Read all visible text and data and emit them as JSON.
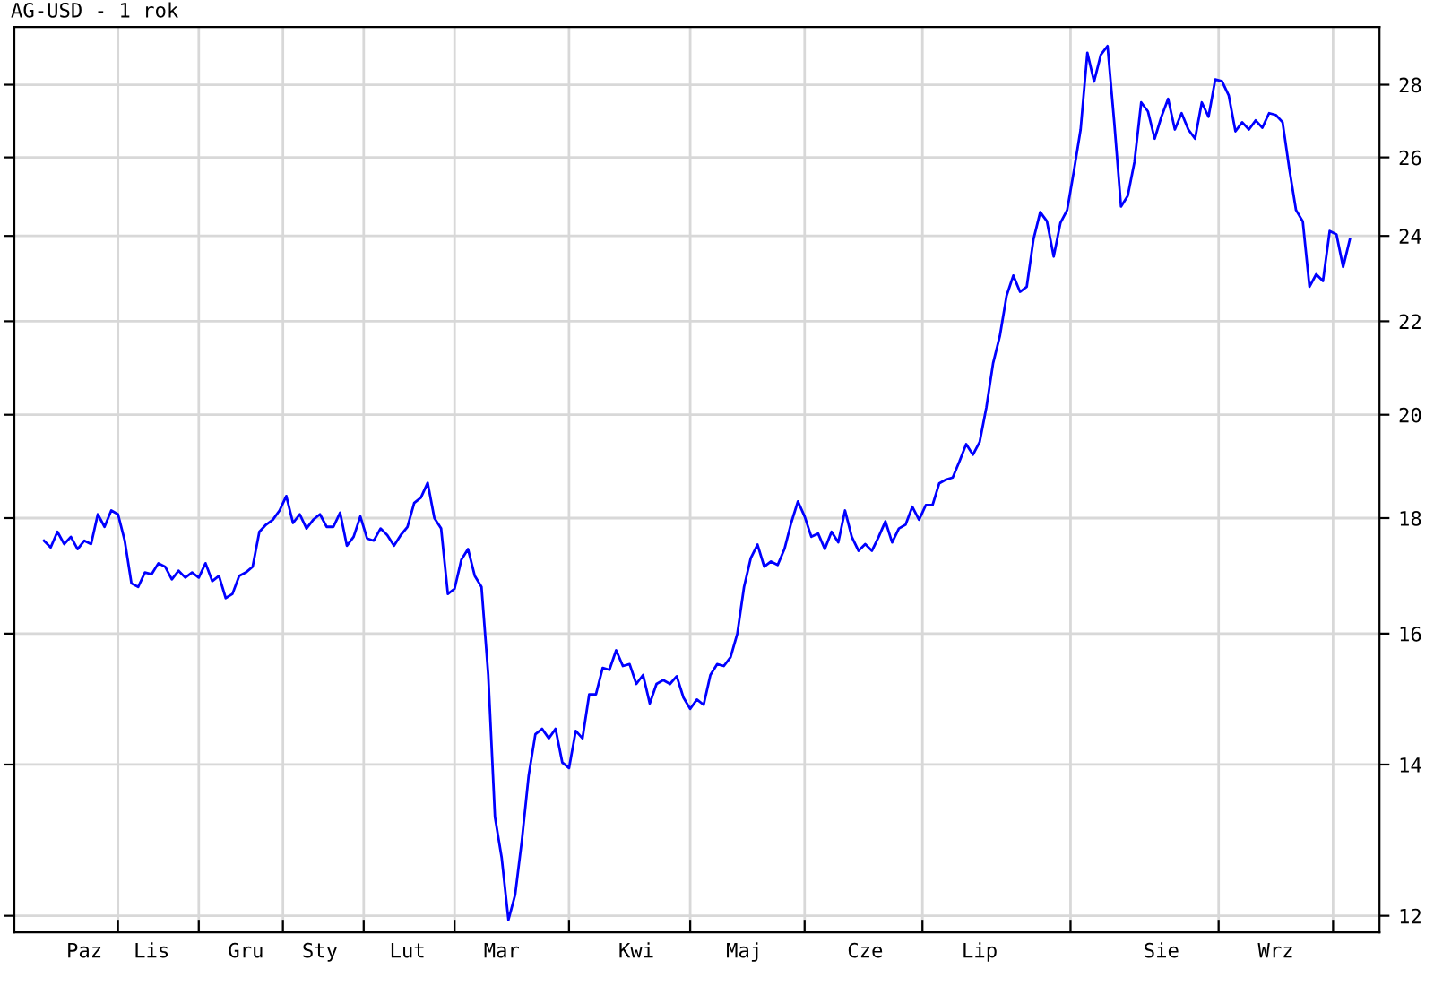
{
  "chart_data": {
    "type": "line",
    "title": "AG-USD - 1 rok",
    "log": "y",
    "grid": true,
    "marker": "none",
    "line_style": "solid",
    "ylim": [
      11.8,
      29.7
    ],
    "yticks": [
      12,
      14,
      16,
      18,
      20,
      22,
      24,
      26,
      28
    ],
    "categories": [
      null,
      null,
      null,
      null,
      null,
      null,
      "Paz",
      null,
      null,
      null,
      null,
      null,
      null,
      null,
      null,
      null,
      "Lis",
      null,
      null,
      null,
      null,
      null,
      null,
      null,
      null,
      null,
      null,
      null,
      null,
      null,
      "Gru",
      null,
      null,
      null,
      null,
      null,
      null,
      null,
      null,
      null,
      null,
      "Sty",
      null,
      null,
      null,
      null,
      null,
      null,
      null,
      null,
      null,
      null,
      null,
      null,
      "Lut",
      null,
      null,
      null,
      null,
      null,
      null,
      null,
      null,
      null,
      null,
      null,
      null,
      null,
      "Mar",
      null,
      null,
      null,
      null,
      null,
      null,
      null,
      null,
      null,
      null,
      null,
      null,
      null,
      null,
      null,
      null,
      null,
      null,
      null,
      "Kwi",
      null,
      null,
      null,
      null,
      null,
      null,
      null,
      null,
      null,
      null,
      null,
      null,
      null,
      null,
      null,
      "Maj",
      null,
      null,
      null,
      null,
      null,
      null,
      null,
      null,
      null,
      null,
      null,
      null,
      null,
      null,
      null,
      null,
      null,
      "Cze",
      null,
      null,
      null,
      null,
      null,
      null,
      null,
      null,
      null,
      null,
      null,
      null,
      null,
      null,
      null,
      null,
      "Lip",
      null,
      null,
      null,
      null,
      null,
      null,
      null,
      null,
      null,
      null,
      null,
      null,
      null,
      null,
      null,
      null,
      null,
      null,
      null,
      null,
      null,
      null,
      null,
      null,
      null,
      null,
      "Sie",
      null,
      null,
      null,
      null,
      null,
      null,
      null,
      null,
      null,
      null,
      null,
      null,
      null,
      null,
      null,
      null,
      "Wrz",
      null,
      null,
      null,
      null,
      null,
      null,
      null,
      null,
      null,
      null,
      null
    ],
    "series": [
      {
        "color": "#0000ff",
        "values": [
          17.59,
          17.47,
          17.75,
          17.53,
          17.66,
          17.44,
          17.59,
          17.53,
          18.07,
          17.84,
          18.14,
          18.07,
          17.59,
          16.84,
          16.78,
          17.03,
          17.0,
          17.19,
          17.13,
          16.91,
          17.06,
          16.94,
          17.03,
          16.94,
          17.19,
          16.88,
          16.97,
          16.59,
          16.66,
          16.97,
          17.03,
          17.13,
          17.75,
          17.88,
          17.97,
          18.14,
          18.41,
          17.91,
          18.07,
          17.81,
          17.97,
          18.07,
          17.84,
          17.84,
          18.1,
          17.5,
          17.66,
          18.03,
          17.63,
          17.59,
          17.81,
          17.69,
          17.5,
          17.69,
          17.84,
          18.28,
          18.38,
          18.66,
          18.0,
          17.81,
          16.66,
          16.75,
          17.25,
          17.44,
          16.97,
          16.78,
          15.34,
          13.27,
          12.73,
          11.95,
          12.26,
          12.96,
          13.84,
          14.44,
          14.52,
          14.38,
          14.52,
          14.03,
          13.95,
          14.49,
          14.38,
          15.04,
          15.04,
          15.45,
          15.42,
          15.73,
          15.48,
          15.51,
          15.2,
          15.34,
          14.9,
          15.2,
          15.26,
          15.2,
          15.32,
          14.99,
          14.82,
          14.96,
          14.88,
          15.34,
          15.51,
          15.48,
          15.62,
          16.0,
          16.78,
          17.28,
          17.52,
          17.13,
          17.22,
          17.16,
          17.44,
          17.91,
          18.31,
          18.03,
          17.66,
          17.72,
          17.44,
          17.75,
          17.56,
          18.14,
          17.66,
          17.41,
          17.53,
          17.41,
          17.66,
          17.94,
          17.56,
          17.81,
          17.88,
          18.21,
          17.97,
          18.24,
          18.24,
          18.65,
          18.72,
          18.76,
          19.07,
          19.41,
          19.2,
          19.45,
          20.15,
          21.08,
          21.67,
          22.58,
          23.05,
          22.67,
          22.79,
          23.92,
          24.59,
          24.36,
          23.5,
          24.32,
          24.64,
          25.64,
          26.75,
          28.93,
          28.09,
          28.87,
          29.13,
          26.94,
          24.73,
          25.0,
          25.88,
          27.5,
          27.25,
          26.5,
          27.1,
          27.6,
          26.75,
          27.2,
          26.75,
          26.5,
          27.5,
          27.1,
          28.15,
          28.1,
          27.7,
          26.7,
          26.95,
          26.75,
          27.0,
          26.8,
          27.2,
          27.15,
          26.95,
          25.7,
          24.64,
          24.36,
          22.79,
          23.08,
          22.92,
          24.12,
          24.04,
          23.25,
          23.92
        ]
      }
    ]
  }
}
